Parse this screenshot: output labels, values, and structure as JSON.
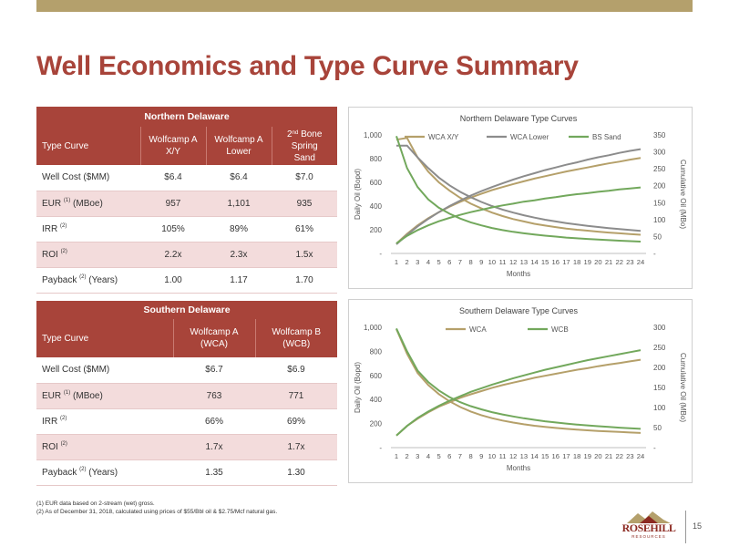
{
  "title": "Well Economics and Type Curve Summary",
  "northern_table": {
    "title": "Northern Delaware",
    "header_label": "Type Curve",
    "columns": [
      {
        "l1": "Wolfcamp A",
        "l2": "X/Y"
      },
      {
        "l1": "Wolfcamp A",
        "l2": "Lower"
      },
      {
        "l1": "2",
        "sup": "nd",
        "l1b": " Bone Spring",
        "l2": "Sand"
      }
    ],
    "rows": [
      {
        "label": "Well Cost ($MM)",
        "sup": "",
        "label_after": "",
        "values": [
          "$6.4",
          "$6.4",
          "$7.0"
        ]
      },
      {
        "label": "EUR ",
        "sup": "(1)",
        "label_after": " (MBoe)",
        "values": [
          "957",
          "1,101",
          "935"
        ]
      },
      {
        "label": "IRR ",
        "sup": "(2)",
        "label_after": "",
        "values": [
          "105%",
          "89%",
          "61%"
        ]
      },
      {
        "label": "ROI ",
        "sup": "(2)",
        "label_after": "",
        "values": [
          "2.2x",
          "2.3x",
          "1.5x"
        ]
      },
      {
        "label": "Payback ",
        "sup": "(2)",
        "label_after": " (Years)",
        "values": [
          "1.00",
          "1.17",
          "1.70"
        ]
      }
    ]
  },
  "southern_table": {
    "title": "Southern Delaware",
    "header_label": "Type Curve",
    "columns": [
      {
        "l1": "Wolfcamp A",
        "l2": "(WCA)"
      },
      {
        "l1": "Wolfcamp B",
        "l2": "(WCB)"
      }
    ],
    "rows": [
      {
        "label": "Well Cost ($MM)",
        "sup": "",
        "label_after": "",
        "values": [
          "$6.7",
          "$6.9"
        ]
      },
      {
        "label": "EUR ",
        "sup": "(1)",
        "label_after": " (MBoe)",
        "values": [
          "763",
          "771"
        ]
      },
      {
        "label": "IRR ",
        "sup": "(2)",
        "label_after": "",
        "values": [
          "66%",
          "69%"
        ]
      },
      {
        "label": "ROI ",
        "sup": "(2)",
        "label_after": "",
        "values": [
          "1.7x",
          "1.7x"
        ]
      },
      {
        "label": "Payback ",
        "sup": "(2)",
        "label_after": " (Years)",
        "values": [
          "1.35",
          "1.30"
        ]
      }
    ]
  },
  "chart_data": [
    {
      "type": "line",
      "title": "Northern Delaware Type Curves",
      "xlabel": "Months",
      "ylabel": "Daily Oil (Bopd)",
      "y2label": "Cumulative Oil (MBo)",
      "x": [
        1,
        2,
        3,
        4,
        5,
        6,
        7,
        8,
        9,
        10,
        11,
        12,
        13,
        14,
        15,
        16,
        17,
        18,
        19,
        20,
        21,
        22,
        23,
        24
      ],
      "ylim": [
        0,
        1000
      ],
      "y2lim": [
        0,
        350
      ],
      "yticks": [
        "-",
        "200",
        "400",
        "600",
        "800",
        "1,000"
      ],
      "y2ticks": [
        "-",
        "50",
        "100",
        "150",
        "200",
        "250",
        "300",
        "350"
      ],
      "legend_position": "top",
      "series": [
        {
          "name": "WCA X/Y",
          "color": "#b5a06a",
          "daily": [
            960,
            975,
            810,
            690,
            600,
            530,
            470,
            420,
            380,
            345,
            315,
            290,
            270,
            250,
            235,
            222,
            210,
            200,
            192,
            184,
            176,
            170,
            164,
            158
          ],
          "cumulative": [
            29,
            58,
            83,
            104,
            122,
            138,
            152,
            165,
            176,
            187,
            196,
            205,
            213,
            221,
            228,
            235,
            242,
            248,
            254,
            260,
            266,
            271,
            277,
            282
          ]
        },
        {
          "name": "WCA Lower",
          "color": "#8c8c8c",
          "daily": [
            910,
            910,
            810,
            720,
            640,
            575,
            520,
            475,
            435,
            400,
            370,
            345,
            322,
            302,
            285,
            270,
            256,
            244,
            233,
            223,
            214,
            206,
            198,
            191
          ],
          "cumulative": [
            27,
            55,
            80,
            102,
            122,
            140,
            156,
            171,
            184,
            196,
            207,
            218,
            228,
            237,
            246,
            254,
            262,
            269,
            277,
            284,
            290,
            297,
            303,
            308
          ]
        },
        {
          "name": "BS Sand",
          "color": "#72a85c",
          "daily": [
            990,
            720,
            560,
            455,
            385,
            335,
            295,
            262,
            237,
            215,
            197,
            182,
            170,
            159,
            150,
            142,
            134,
            128,
            122,
            117,
            112,
            108,
            104,
            100
          ],
          "cumulative": [
            30,
            52,
            69,
            83,
            95,
            105,
            114,
            122,
            129,
            136,
            142,
            147,
            153,
            157,
            162,
            166,
            171,
            175,
            178,
            182,
            185,
            189,
            192,
            195
          ]
        }
      ]
    },
    {
      "type": "line",
      "title": "Southern Delaware Type Curves",
      "xlabel": "Months",
      "ylabel": "Daily Oil (Bopd)",
      "y2label": "Cumulative Oil (MBo)",
      "x": [
        1,
        2,
        3,
        4,
        5,
        6,
        7,
        8,
        9,
        10,
        11,
        12,
        13,
        14,
        15,
        16,
        17,
        18,
        19,
        20,
        21,
        22,
        23,
        24
      ],
      "ylim": [
        0,
        1000
      ],
      "y2lim": [
        0,
        300
      ],
      "yticks": [
        "-",
        "200",
        "400",
        "600",
        "800",
        "1,000"
      ],
      "y2ticks": [
        "-",
        "50",
        "100",
        "150",
        "200",
        "250",
        "300"
      ],
      "legend_position": "top",
      "series": [
        {
          "name": "WCA",
          "color": "#b5a06a",
          "daily": [
            985,
            780,
            620,
            520,
            445,
            385,
            338,
            300,
            270,
            245,
            225,
            208,
            194,
            182,
            172,
            164,
            156,
            150,
            144,
            139,
            134,
            130,
            126,
            122
          ],
          "cumulative": [
            30,
            54,
            72,
            88,
            102,
            113,
            124,
            133,
            141,
            149,
            156,
            162,
            168,
            174,
            179,
            184,
            189,
            194,
            198,
            203,
            207,
            211,
            215,
            219
          ]
        },
        {
          "name": "WCB",
          "color": "#72a85c",
          "daily": [
            990,
            800,
            640,
            545,
            475,
            420,
            378,
            345,
            318,
            295,
            276,
            259,
            244,
            231,
            219,
            209,
            200,
            192,
            185,
            178,
            172,
            166,
            161,
            156
          ],
          "cumulative": [
            30,
            54,
            74,
            90,
            104,
            117,
            128,
            139,
            148,
            157,
            165,
            173,
            180,
            187,
            194,
            200,
            206,
            212,
            218,
            223,
            228,
            233,
            238,
            243
          ]
        }
      ]
    }
  ],
  "footnotes": [
    "(1) EUR data based on 2-stream (wet) gross.",
    "(2) As of December 31, 2018, calculated using prices of $55/Bbl oil & $2.75/Mcf natural gas."
  ],
  "logo": {
    "name": "ROSEHILL",
    "sub": "RESOURCES"
  },
  "page_number": "15",
  "colors": {
    "accent": "#a8443a",
    "gold": "#b4a06c",
    "green": "#72a85c",
    "gray": "#8c8c8c"
  }
}
